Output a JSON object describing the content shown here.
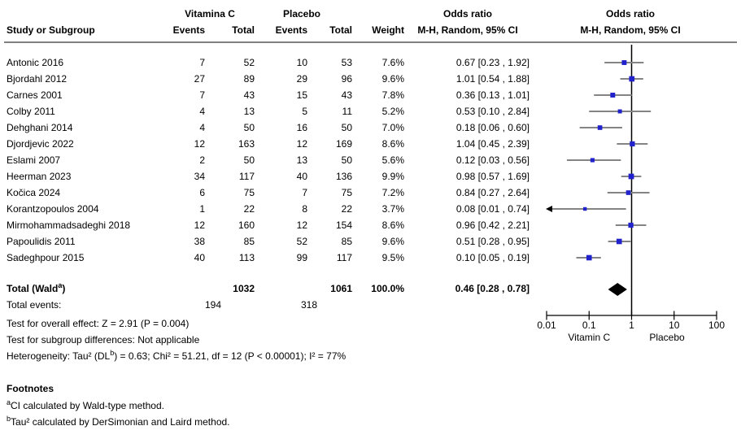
{
  "header": {
    "group1": "Vitamina C",
    "group2": "Placebo",
    "study_col": "Study or Subgroup",
    "events": "Events",
    "total": "Total",
    "weight": "Weight",
    "or_title": "Odds ratio",
    "or_subtitle": "M-H, Random, 95% CI"
  },
  "chart_data": {
    "type": "forest",
    "effect_measure": "Odds ratio, M-H, Random, 95% CI",
    "studies": [
      {
        "name": "Antonic 2016",
        "events_vitc": 7,
        "total_vitc": 52,
        "events_placebo": 10,
        "total_placebo": 53,
        "weight_pct": 7.6,
        "or": 0.67,
        "ci_low": 0.23,
        "ci_high": 1.92
      },
      {
        "name": "Bjordahl 2012",
        "events_vitc": 27,
        "total_vitc": 89,
        "events_placebo": 29,
        "total_placebo": 96,
        "weight_pct": 9.6,
        "or": 1.01,
        "ci_low": 0.54,
        "ci_high": 1.88
      },
      {
        "name": "Carnes 2001",
        "events_vitc": 7,
        "total_vitc": 43,
        "events_placebo": 15,
        "total_placebo": 43,
        "weight_pct": 7.8,
        "or": 0.36,
        "ci_low": 0.13,
        "ci_high": 1.01
      },
      {
        "name": "Colby 2011",
        "events_vitc": 4,
        "total_vitc": 13,
        "events_placebo": 5,
        "total_placebo": 11,
        "weight_pct": 5.2,
        "or": 0.53,
        "ci_low": 0.1,
        "ci_high": 2.84
      },
      {
        "name": "Dehghani 2014",
        "events_vitc": 4,
        "total_vitc": 50,
        "events_placebo": 16,
        "total_placebo": 50,
        "weight_pct": 7.0,
        "or": 0.18,
        "ci_low": 0.06,
        "ci_high": 0.6
      },
      {
        "name": "Djordjevic 2022",
        "events_vitc": 12,
        "total_vitc": 163,
        "events_placebo": 12,
        "total_placebo": 169,
        "weight_pct": 8.6,
        "or": 1.04,
        "ci_low": 0.45,
        "ci_high": 2.39
      },
      {
        "name": "Eslami 2007",
        "events_vitc": 2,
        "total_vitc": 50,
        "events_placebo": 13,
        "total_placebo": 50,
        "weight_pct": 5.6,
        "or": 0.12,
        "ci_low": 0.03,
        "ci_high": 0.56
      },
      {
        "name": "Heerman 2023",
        "events_vitc": 34,
        "total_vitc": 117,
        "events_placebo": 40,
        "total_placebo": 136,
        "weight_pct": 9.9,
        "or": 0.98,
        "ci_low": 0.57,
        "ci_high": 1.69
      },
      {
        "name": "Kočica 2024",
        "events_vitc": 6,
        "total_vitc": 75,
        "events_placebo": 7,
        "total_placebo": 75,
        "weight_pct": 7.2,
        "or": 0.84,
        "ci_low": 0.27,
        "ci_high": 2.64
      },
      {
        "name": "Korantzopoulos 2004",
        "events_vitc": 1,
        "total_vitc": 22,
        "events_placebo": 8,
        "total_placebo": 22,
        "weight_pct": 3.7,
        "or": 0.08,
        "ci_low": 0.01,
        "ci_high": 0.74,
        "arrow_low": true
      },
      {
        "name": "Mirmohammadsadeghi 2018",
        "events_vitc": 12,
        "total_vitc": 160,
        "events_placebo": 12,
        "total_placebo": 154,
        "weight_pct": 8.6,
        "or": 0.96,
        "ci_low": 0.42,
        "ci_high": 2.21
      },
      {
        "name": "Papoulidis 2011",
        "events_vitc": 38,
        "total_vitc": 85,
        "events_placebo": 52,
        "total_placebo": 85,
        "weight_pct": 9.6,
        "or": 0.51,
        "ci_low": 0.28,
        "ci_high": 0.95
      },
      {
        "name": "Sadeghpour 2015",
        "events_vitc": 40,
        "total_vitc": 113,
        "events_placebo": 99,
        "total_placebo": 117,
        "weight_pct": 9.5,
        "or": 0.1,
        "ci_low": 0.05,
        "ci_high": 0.19
      }
    ],
    "total": {
      "label_pre": "Total (Wald",
      "label_sup": "a",
      "label_post": ")",
      "total_vitc": 1032,
      "total_placebo": 1061,
      "weight_pct": 100.0,
      "or": 0.46,
      "ci_low": 0.28,
      "ci_high": 0.78
    },
    "total_events": {
      "label": "Total events:",
      "vitc": 194,
      "placebo": 318
    },
    "axis": {
      "scale": "log",
      "min": 0.01,
      "max": 100,
      "ticks": [
        0.01,
        0.1,
        1,
        10,
        100
      ],
      "left_label": "Vitamin C",
      "right_label": "Placebo",
      "legend_position": "bottom-right",
      "grid": false
    }
  },
  "stats": {
    "overall_effect": "Test for overall effect: Z = 2.91 (P = 0.004)",
    "subgroup": "Test for subgroup differences: Not applicable",
    "heterogeneity_pre": "Heterogeneity: Tau² (DL",
    "heterogeneity_sup": "b",
    "heterogeneity_post": ") = 0.63; Chi² = 51.21, df = 12 (P < 0.00001); I² = 77%"
  },
  "footnotes": {
    "title": "Footnotes",
    "a_sup": "a",
    "a_text": "CI calculated by Wald-type method.",
    "b_sup": "b",
    "b_text": "Tau² calculated by DerSimonian and Laird method."
  },
  "colors": {
    "marker": "#2222CC",
    "ci_line": "#848484",
    "diamond": "#000000",
    "null_line": "#000000",
    "header_rule": "#808080"
  }
}
